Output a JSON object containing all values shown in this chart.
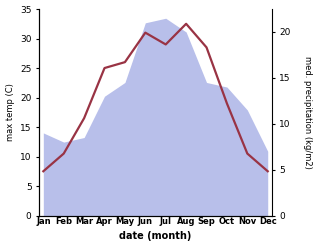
{
  "months": [
    "Jan",
    "Feb",
    "Mar",
    "Apr",
    "May",
    "Jun",
    "Jul",
    "Aug",
    "Sep",
    "Oct",
    "Nov",
    "Dec"
  ],
  "month_x": [
    0,
    1,
    2,
    3,
    4,
    5,
    6,
    7,
    8,
    9,
    10,
    11
  ],
  "temperature": [
    7.5,
    10.5,
    16.5,
    25.0,
    26.0,
    31.0,
    29.0,
    32.5,
    28.5,
    19.0,
    10.5,
    7.5
  ],
  "precipitation": [
    9.0,
    8.0,
    8.5,
    13.0,
    14.5,
    21.0,
    21.5,
    20.0,
    14.5,
    14.0,
    11.5,
    7.0
  ],
  "temp_color": "#993344",
  "precip_fill_color": "#b8bfea",
  "temp_ylim": [
    0,
    35
  ],
  "precip_ylim": [
    0,
    22.5
  ],
  "temp_yticks": [
    0,
    5,
    10,
    15,
    20,
    25,
    30,
    35
  ],
  "precip_yticks": [
    0,
    5,
    10,
    15,
    20
  ],
  "ylabel_left": "max temp (C)",
  "ylabel_right": "med. precipitation (kg/m2)",
  "xlabel": "date (month)",
  "background_color": "#ffffff"
}
